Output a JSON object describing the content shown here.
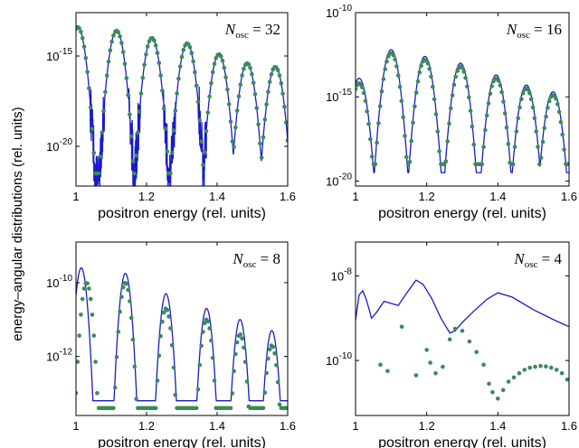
{
  "figure": {
    "ylabel": "energy–angular distributions (rel. units)"
  },
  "chart_data": [
    {
      "type": "line",
      "annotation": {
        "symbol": "N",
        "subscript": "osc",
        "text": " = 32"
      },
      "xlabel": "positron energy (rel. units)",
      "ylabel": "",
      "xlim": [
        1.0,
        1.6
      ],
      "ylim_log10": [
        -22.2,
        -12.6
      ],
      "yscale": "log",
      "xticks": [
        "1",
        "1.2",
        "1.4",
        "1.6"
      ],
      "yticks": [
        {
          "exp": "-15",
          "pos": -15
        },
        {
          "exp": "-20",
          "pos": -20
        }
      ],
      "series": [
        {
          "kind": "line",
          "color": "#1a1acc",
          "peaks": [
            [
              1.005,
              -13.4
            ],
            [
              1.115,
              -13.6
            ],
            [
              1.215,
              -14.0
            ],
            [
              1.315,
              -14.3
            ],
            [
              1.405,
              -14.9
            ],
            [
              1.485,
              -15.4
            ],
            [
              1.565,
              -15.6
            ]
          ],
          "floor": -22.0,
          "noisy_until": 1.37
        },
        {
          "kind": "dots",
          "color": "#3a8a5a",
          "peaks": [
            [
              1.005,
              -13.4
            ],
            [
              1.115,
              -13.6
            ],
            [
              1.215,
              -14.0
            ],
            [
              1.315,
              -14.3
            ],
            [
              1.405,
              -14.9
            ],
            [
              1.485,
              -15.4
            ],
            [
              1.565,
              -15.6
            ]
          ],
          "floor": -21.5
        }
      ]
    },
    {
      "type": "line",
      "annotation": {
        "symbol": "N",
        "subscript": "osc",
        "text": " = 16"
      },
      "xlabel": "positron energy (rel. units)",
      "ylabel": "",
      "xlim": [
        1.0,
        1.6
      ],
      "ylim_log10": [
        -20.3,
        -10.0
      ],
      "yscale": "log",
      "xticks": [
        "1",
        "1.2",
        "1.4",
        "1.6"
      ],
      "yticks": [
        {
          "exp": "-10",
          "pos": -10
        },
        {
          "exp": "-15",
          "pos": -15
        },
        {
          "exp": "-20",
          "pos": -20
        }
      ],
      "series": [
        {
          "kind": "line",
          "color": "#1a1acc",
          "peaks": [
            [
              1.01,
              -13.9
            ],
            [
              1.1,
              -12.2
            ],
            [
              1.195,
              -12.6
            ],
            [
              1.295,
              -13.0
            ],
            [
              1.395,
              -13.7
            ],
            [
              1.48,
              -14.3
            ],
            [
              1.555,
              -14.7
            ]
          ],
          "floor": -19.5,
          "noisy_until": 0
        },
        {
          "kind": "dots",
          "color": "#3a8a5a",
          "peaks": [
            [
              1.01,
              -14.2
            ],
            [
              1.1,
              -12.4
            ],
            [
              1.195,
              -12.8
            ],
            [
              1.295,
              -13.2
            ],
            [
              1.395,
              -13.9
            ],
            [
              1.48,
              -14.5
            ],
            [
              1.555,
              -14.9
            ]
          ],
          "floor": -19.0
        }
      ]
    },
    {
      "type": "line",
      "annotation": {
        "symbol": "N",
        "subscript": "osc",
        "text": " = 8"
      },
      "xlabel": "positron energy (rel. units)",
      "ylabel": "",
      "xlim": [
        1.0,
        1.6
      ],
      "ylim_log10": [
        -13.6,
        -8.9
      ],
      "yscale": "log",
      "xticks": [
        "1",
        "1.2",
        "1.4",
        "1.6"
      ],
      "yticks": [
        {
          "exp": "-10",
          "pos": -10
        },
        {
          "exp": "-12",
          "pos": -12
        }
      ],
      "series": [
        {
          "kind": "line",
          "color": "#1a1acc",
          "peaks": [
            [
              1.015,
              -9.6
            ],
            [
              1.14,
              -9.75
            ],
            [
              1.255,
              -10.3
            ],
            [
              1.37,
              -10.7
            ],
            [
              1.465,
              -11.0
            ],
            [
              1.555,
              -11.3
            ]
          ],
          "floor": -13.2,
          "noisy_until": 0
        },
        {
          "kind": "dots",
          "color": "#3a8a5a",
          "peaks": [
            [
              1.03,
              -10.0
            ],
            [
              1.14,
              -10.0
            ],
            [
              1.255,
              -10.7
            ],
            [
              1.37,
              -11.0
            ],
            [
              1.465,
              -11.4
            ],
            [
              1.555,
              -11.7
            ]
          ],
          "floor": -13.4
        }
      ]
    },
    {
      "type": "line",
      "annotation": {
        "symbol": "N",
        "subscript": "osc",
        "text": " = 4"
      },
      "xlabel": "positron energy (rel. units)",
      "ylabel": "",
      "xlim": [
        1.0,
        1.6
      ],
      "ylim_log10": [
        -11.3,
        -7.2
      ],
      "yscale": "log",
      "xticks": [
        "1",
        "1.2",
        "1.4",
        "1.6"
      ],
      "yticks": [
        {
          "exp": "-8",
          "pos": -8
        },
        {
          "exp": "-10",
          "pos": -10
        }
      ],
      "series": [
        {
          "kind": "line",
          "color": "#1a1acc",
          "points": [
            [
              1.0,
              -9.05
            ],
            [
              1.01,
              -8.45
            ],
            [
              1.02,
              -8.35
            ],
            [
              1.03,
              -8.55
            ],
            [
              1.045,
              -9.0
            ],
            [
              1.06,
              -8.85
            ],
            [
              1.08,
              -8.6
            ],
            [
              1.1,
              -8.65
            ],
            [
              1.12,
              -8.7
            ],
            [
              1.14,
              -8.45
            ],
            [
              1.17,
              -8.1
            ],
            [
              1.19,
              -8.2
            ],
            [
              1.215,
              -8.55
            ],
            [
              1.24,
              -9.0
            ],
            [
              1.265,
              -9.35
            ],
            [
              1.28,
              -9.3
            ],
            [
              1.3,
              -9.1
            ],
            [
              1.33,
              -8.85
            ],
            [
              1.37,
              -8.55
            ],
            [
              1.4,
              -8.4
            ],
            [
              1.44,
              -8.5
            ],
            [
              1.5,
              -8.8
            ],
            [
              1.56,
              -9.05
            ],
            [
              1.6,
              -9.2
            ]
          ]
        },
        {
          "kind": "dots",
          "color": "#3a8a5a",
          "points": [
            [
              1.07,
              -10.1
            ],
            [
              1.09,
              -10.25
            ],
            [
              1.13,
              -9.2
            ],
            [
              1.17,
              -10.35
            ],
            [
              1.2,
              -9.75
            ],
            [
              1.21,
              -10.05
            ],
            [
              1.225,
              -10.3
            ],
            [
              1.245,
              -10.15
            ],
            [
              1.265,
              -9.5
            ],
            [
              1.28,
              -9.25
            ],
            [
              1.3,
              -9.3
            ],
            [
              1.32,
              -9.55
            ],
            [
              1.34,
              -9.8
            ],
            [
              1.36,
              -10.1
            ],
            [
              1.375,
              -10.55
            ],
            [
              1.385,
              -10.75
            ],
            [
              1.4,
              -10.9
            ],
            [
              1.415,
              -10.7
            ],
            [
              1.43,
              -10.5
            ],
            [
              1.445,
              -10.4
            ],
            [
              1.46,
              -10.3
            ],
            [
              1.475,
              -10.22
            ],
            [
              1.49,
              -10.17
            ],
            [
              1.505,
              -10.15
            ],
            [
              1.52,
              -10.13
            ],
            [
              1.535,
              -10.14
            ],
            [
              1.55,
              -10.17
            ],
            [
              1.565,
              -10.22
            ],
            [
              1.58,
              -10.3
            ],
            [
              1.595,
              -10.45
            ]
          ]
        }
      ]
    }
  ]
}
